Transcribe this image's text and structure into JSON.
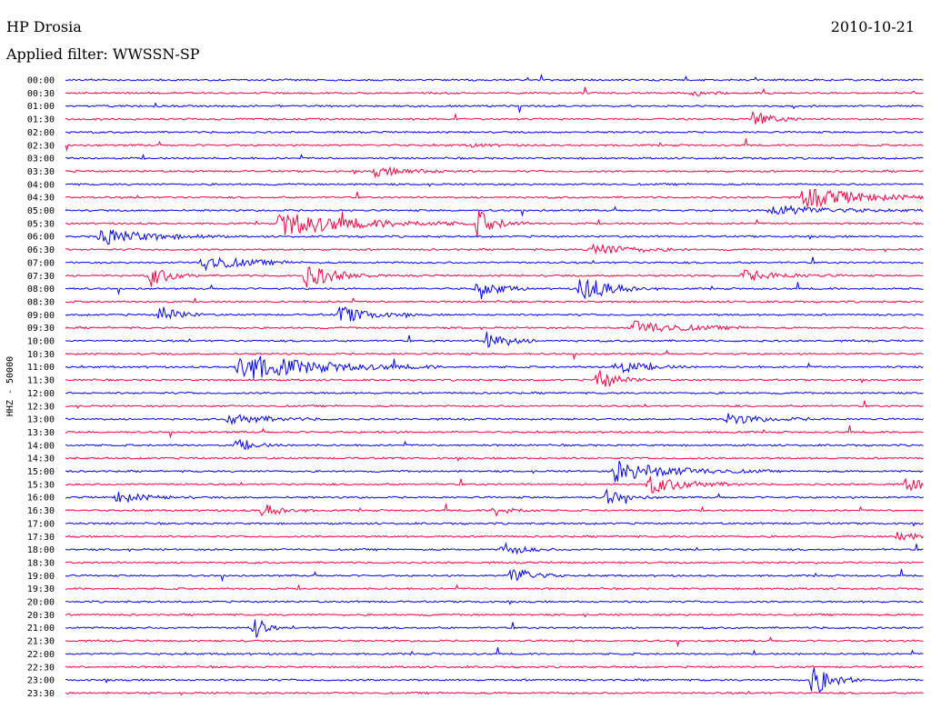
{
  "header": {
    "station": "HP Drosia",
    "date": "2010-10-21",
    "filter": "Applied filter: WWSSN-SP"
  },
  "chart_data": {
    "type": "line",
    "title": "HP Drosia",
    "ylabel": "HHZ - 50000",
    "colors": {
      "even_rows": "#0000ff",
      "odd_rows": "#ff0040"
    },
    "rows": [
      "00:00",
      "00:30",
      "01:00",
      "01:30",
      "02:00",
      "02:30",
      "03:00",
      "03:30",
      "04:00",
      "04:30",
      "05:00",
      "05:30",
      "06:00",
      "06:30",
      "07:00",
      "07:30",
      "08:00",
      "08:30",
      "09:00",
      "09:30",
      "10:00",
      "10:30",
      "11:00",
      "11:30",
      "12:00",
      "12:30",
      "13:00",
      "13:30",
      "14:00",
      "14:30",
      "15:00",
      "15:30",
      "16:00",
      "16:30",
      "17:00",
      "17:30",
      "18:00",
      "18:30",
      "19:00",
      "19:30",
      "20:00",
      "20:30",
      "21:00",
      "21:30",
      "22:00",
      "22:30",
      "23:00",
      "23:30"
    ],
    "events": [
      {
        "row": 1,
        "x": 0.73,
        "amp": 3,
        "dur": 0.02
      },
      {
        "row": 3,
        "x": 0.8,
        "amp": 10,
        "dur": 0.02
      },
      {
        "row": 5,
        "x": 0.47,
        "amp": 2,
        "dur": 0.02
      },
      {
        "row": 7,
        "x": 0.36,
        "amp": 5,
        "dur": 0.04
      },
      {
        "row": 9,
        "x": 0.86,
        "amp": 12,
        "dur": 0.06
      },
      {
        "row": 10,
        "x": 0.82,
        "amp": 6,
        "dur": 0.06
      },
      {
        "row": 11,
        "x": 0.25,
        "amp": 14,
        "dur": 0.08
      },
      {
        "row": 11,
        "x": 0.48,
        "amp": 14,
        "dur": 0.02
      },
      {
        "row": 12,
        "x": 0.04,
        "amp": 10,
        "dur": 0.05
      },
      {
        "row": 13,
        "x": 0.61,
        "amp": 8,
        "dur": 0.04
      },
      {
        "row": 14,
        "x": 0.16,
        "amp": 10,
        "dur": 0.04
      },
      {
        "row": 15,
        "x": 0.1,
        "amp": 12,
        "dur": 0.02
      },
      {
        "row": 15,
        "x": 0.28,
        "amp": 14,
        "dur": 0.03
      },
      {
        "row": 15,
        "x": 0.79,
        "amp": 6,
        "dur": 0.04
      },
      {
        "row": 16,
        "x": 0.48,
        "amp": 14,
        "dur": 0.02
      },
      {
        "row": 16,
        "x": 0.6,
        "amp": 16,
        "dur": 0.03
      },
      {
        "row": 18,
        "x": 0.11,
        "amp": 10,
        "dur": 0.02
      },
      {
        "row": 18,
        "x": 0.32,
        "amp": 10,
        "dur": 0.03
      },
      {
        "row": 19,
        "x": 0.66,
        "amp": 8,
        "dur": 0.05
      },
      {
        "row": 20,
        "x": 0.49,
        "amp": 14,
        "dur": 0.02
      },
      {
        "row": 22,
        "x": 0.2,
        "amp": 16,
        "dur": 0.08
      },
      {
        "row": 22,
        "x": 0.64,
        "amp": 8,
        "dur": 0.03
      },
      {
        "row": 23,
        "x": 0.62,
        "amp": 12,
        "dur": 0.02
      },
      {
        "row": 26,
        "x": 0.19,
        "amp": 6,
        "dur": 0.04
      },
      {
        "row": 26,
        "x": 0.77,
        "amp": 6,
        "dur": 0.04
      },
      {
        "row": 28,
        "x": 0.2,
        "amp": 6,
        "dur": 0.02
      },
      {
        "row": 30,
        "x": 0.64,
        "amp": 12,
        "dur": 0.06
      },
      {
        "row": 31,
        "x": 0.68,
        "amp": 10,
        "dur": 0.04
      },
      {
        "row": 31,
        "x": 0.98,
        "amp": 8,
        "dur": 0.02
      },
      {
        "row": 32,
        "x": 0.06,
        "amp": 6,
        "dur": 0.03
      },
      {
        "row": 32,
        "x": 0.63,
        "amp": 8,
        "dur": 0.02
      },
      {
        "row": 33,
        "x": 0.23,
        "amp": 8,
        "dur": 0.02
      },
      {
        "row": 33,
        "x": 0.5,
        "amp": 6,
        "dur": 0.02
      },
      {
        "row": 35,
        "x": 0.97,
        "amp": 6,
        "dur": 0.02
      },
      {
        "row": 36,
        "x": 0.51,
        "amp": 8,
        "dur": 0.02
      },
      {
        "row": 38,
        "x": 0.52,
        "amp": 12,
        "dur": 0.02
      },
      {
        "row": 42,
        "x": 0.22,
        "amp": 16,
        "dur": 0.01
      },
      {
        "row": 46,
        "x": 0.87,
        "amp": 20,
        "dur": 0.02
      }
    ]
  }
}
